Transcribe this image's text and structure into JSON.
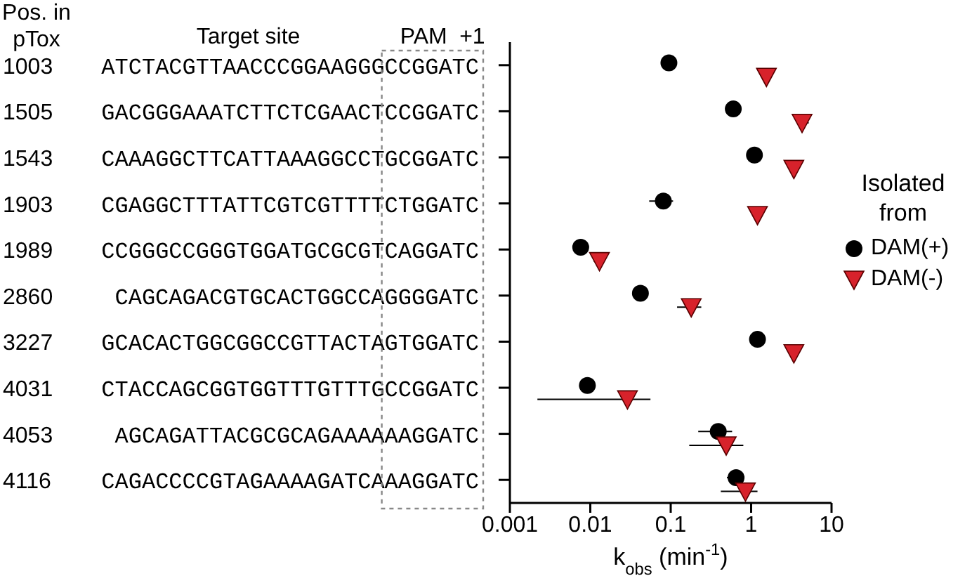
{
  "chart_data": {
    "type": "scatter",
    "orientation": "horizontal",
    "log": "x",
    "categories": [
      "1003 ATCTACGTTAACCCGGAAGGGCCGGATC",
      "1505 GACGGGAAATCTTCTCGAACTCCGGATC",
      "1543 CAAAGGCTTCATTAAAGGCCTGCGGATC",
      "1903 CGAGGCTTTATTCGTCGTTTTCTGGATC",
      "1989 CCGGGCCGGGTGGATGCGCGTCAGGATC",
      "2860 CAGCAGACGTGCACTGGCCAGGGGATC",
      "3227 GCACACTGGCGGCCGTTACTAGTGGATC",
      "4031 CTACCAGCGGTGGTTTGTTTGCCGGATC",
      "4053 AGCAGATTACGCGCAGAAAAAAGGATC",
      "4116 CAGACCCCGTAGAAAAGATCAAAGGATC"
    ],
    "series": [
      {
        "name": "DAM(+)",
        "color": "#000000",
        "marker": "circle",
        "values": [
          0.095,
          0.6,
          1.1,
          0.081,
          0.0076,
          0.042,
          1.2,
          0.0092,
          0.39,
          0.65
        ],
        "errors": [
          null,
          null,
          null,
          [
            0.054,
            0.107
          ],
          null,
          null,
          null,
          null,
          [
            0.22,
            0.58
          ],
          [
            0.5,
            0.75
          ]
        ]
      },
      {
        "name": "DAM(-)",
        "color": "#d7222b",
        "marker": "triangle",
        "values": [
          1.55,
          4.3,
          3.4,
          1.2,
          0.013,
          0.18,
          3.4,
          0.029,
          0.49,
          0.85
        ],
        "errors": [
          null,
          [
            3.8,
            5.2
          ],
          null,
          null,
          [
            0.011,
            0.015
          ],
          [
            0.12,
            0.24
          ],
          null,
          [
            0.0022,
            0.056
          ],
          [
            0.17,
            0.8
          ],
          [
            0.42,
            1.2
          ]
        ]
      }
    ],
    "xlim": [
      0.001,
      10
    ],
    "xticks": [
      0.001,
      0.01,
      0.1,
      1,
      10
    ],
    "xlabel": "k$_{obs}$ (min$^{-1}$)",
    "annotations": [
      "Pos. in pTox",
      "Target site",
      "PAM",
      "+1"
    ],
    "legend_title": "Isolated from",
    "legend": "right",
    "grid": false
  }
}
